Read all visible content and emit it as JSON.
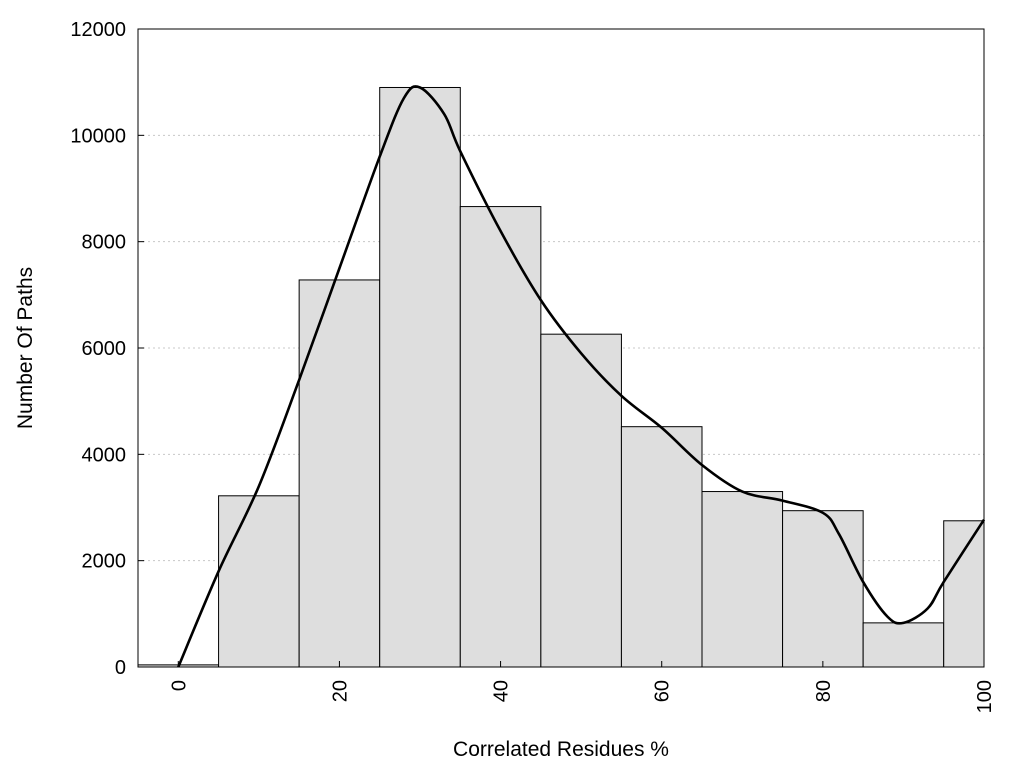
{
  "chart_data": {
    "type": "bar",
    "title": "",
    "xlabel": "Correlated Residues %",
    "ylabel": "Number Of Paths",
    "xlim": [
      -5,
      100
    ],
    "ylim": [
      0,
      12000
    ],
    "x_ticks": [
      0,
      20,
      40,
      60,
      80,
      100
    ],
    "y_ticks": [
      0,
      2000,
      4000,
      6000,
      8000,
      10000,
      12000
    ],
    "grid": "horizontal-dotted",
    "bar_color": "#dedede",
    "bar_edge_color": "#000000",
    "bins": [
      {
        "center": 0,
        "value": 40
      },
      {
        "center": 10,
        "value": 3220
      },
      {
        "center": 20,
        "value": 7280
      },
      {
        "center": 30,
        "value": 10900
      },
      {
        "center": 40,
        "value": 8660
      },
      {
        "center": 50,
        "value": 6260
      },
      {
        "center": 60,
        "value": 4520
      },
      {
        "center": 70,
        "value": 3300
      },
      {
        "center": 80,
        "value": 2940
      },
      {
        "center": 90,
        "value": 830
      },
      {
        "center": 100,
        "value": 2750
      }
    ],
    "bin_width": 10,
    "curve": {
      "type": "line",
      "color": "#000000",
      "points": [
        [
          0,
          0
        ],
        [
          5,
          1800
        ],
        [
          10,
          3400
        ],
        [
          15,
          5400
        ],
        [
          20,
          7500
        ],
        [
          25,
          9600
        ],
        [
          28,
          10700
        ],
        [
          30,
          10900
        ],
        [
          33,
          10400
        ],
        [
          35,
          9700
        ],
        [
          40,
          8200
        ],
        [
          45,
          6900
        ],
        [
          50,
          5900
        ],
        [
          55,
          5100
        ],
        [
          60,
          4500
        ],
        [
          65,
          3800
        ],
        [
          70,
          3300
        ],
        [
          75,
          3130
        ],
        [
          80,
          2900
        ],
        [
          82,
          2500
        ],
        [
          85,
          1600
        ],
        [
          88,
          950
        ],
        [
          90,
          830
        ],
        [
          93,
          1100
        ],
        [
          95,
          1600
        ],
        [
          100,
          2770
        ]
      ]
    }
  }
}
